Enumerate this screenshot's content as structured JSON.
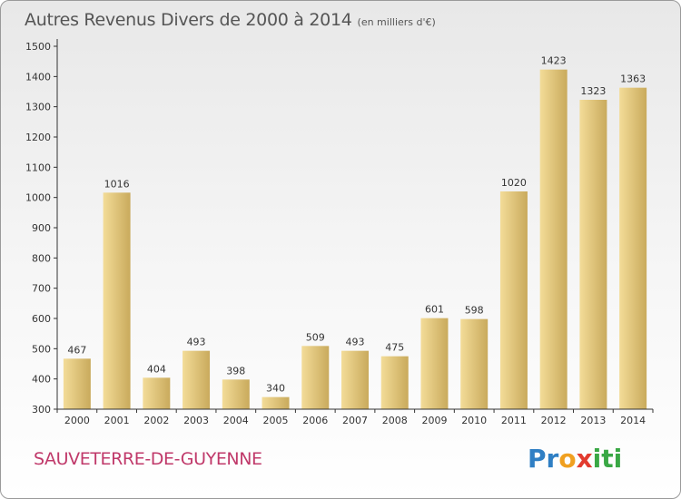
{
  "header": {
    "title": "Autres Revenus Divers de 2000 à 2014",
    "unit": "(en milliers d'€)"
  },
  "footer": {
    "commune": "SAUVETERRE-DE-GUYENNE",
    "logo_text": "Proxiti",
    "logo_letters": [
      {
        "ch": "P",
        "color": "#2f7fc4"
      },
      {
        "ch": "r",
        "color": "#2f7fc4"
      },
      {
        "ch": "o",
        "color": "#f0a020"
      },
      {
        "ch": "x",
        "color": "#e23b2f"
      },
      {
        "ch": "i",
        "color": "#3aa845"
      },
      {
        "ch": "t",
        "color": "#3aa845"
      },
      {
        "ch": "i",
        "color": "#3aa845"
      }
    ]
  },
  "chart_data": {
    "type": "bar",
    "title": "Autres Revenus Divers de 2000 à 2014",
    "subtitle": "(en milliers d'€)",
    "xlabel": "",
    "ylabel": "",
    "categories": [
      "2000",
      "2001",
      "2002",
      "2003",
      "2004",
      "2005",
      "2006",
      "2007",
      "2008",
      "2009",
      "2010",
      "2011",
      "2012",
      "2013",
      "2014"
    ],
    "values": [
      467,
      1016,
      404,
      493,
      398,
      340,
      509,
      493,
      475,
      601,
      598,
      1020,
      1423,
      1323,
      1363
    ],
    "data_labels": [
      "467",
      "1016",
      "404",
      "493",
      "398",
      "340",
      "509",
      "493",
      "475",
      "601",
      "598",
      "1020",
      "1423",
      "1323",
      "1363"
    ],
    "ylim": [
      300,
      1500
    ],
    "yticks": [
      300,
      400,
      500,
      600,
      700,
      800,
      900,
      1000,
      1100,
      1200,
      1300,
      1400,
      1500
    ],
    "ytick_labels": [
      "300",
      "400",
      "500",
      "600",
      "700",
      "800",
      "900",
      "1000",
      "1100",
      "1200",
      "1300",
      "1400",
      "1500"
    ],
    "grid": false,
    "legend": "none",
    "colors": {
      "bar_light": "#f3dc98",
      "bar_dark": "#c9aa5c",
      "axis": "#333333",
      "text": "#333333"
    }
  }
}
